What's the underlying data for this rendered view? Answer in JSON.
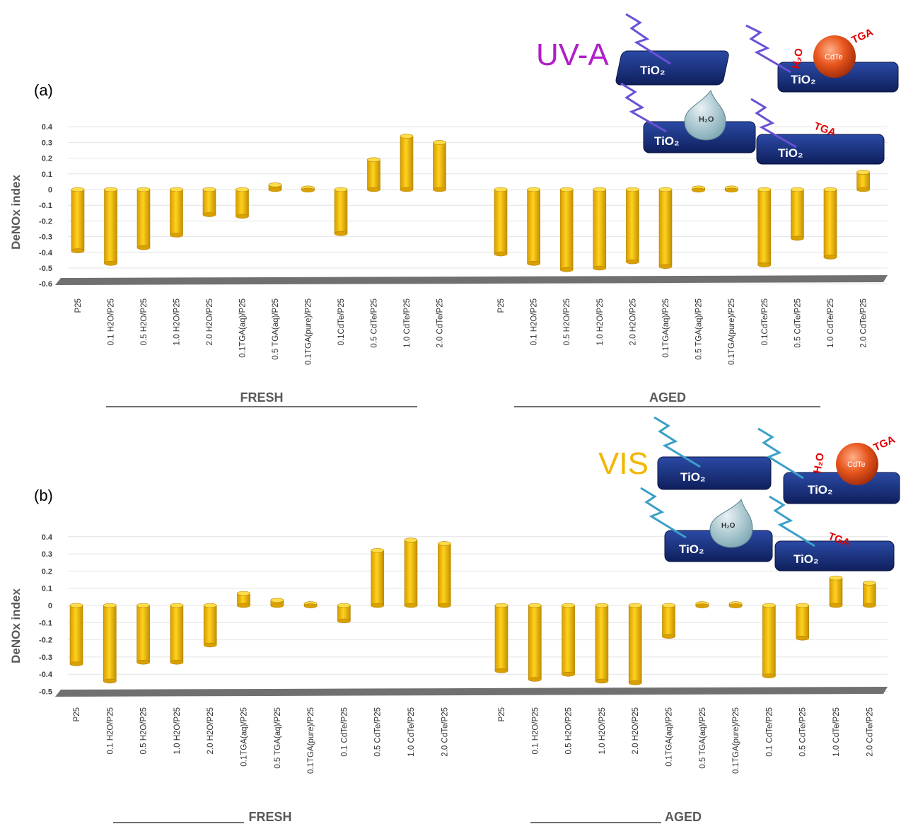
{
  "chart_data": [
    {
      "type": "bar",
      "panel_label": "(a)",
      "illumination_label": "UV-A",
      "ylabel": "DeNOx index",
      "ylim": [
        -0.6,
        0.4
      ],
      "yticks": [
        "0.4",
        "0.3",
        "0.2",
        "0.1",
        "0",
        "-0.1",
        "-0.2",
        "-0.3",
        "-0.4",
        "-0.5",
        "-0.6"
      ],
      "groups": [
        {
          "label": "FRESH",
          "categories": [
            "P25",
            "0.1 H2O/P25",
            "0.5 H2O/P25",
            "1.0 H2O/P25",
            "2.0 H2O/P25",
            "0.1TGA(aq)/P25",
            "0.5 TGA(aq)/P25",
            "0.1TGA(pure)/P25",
            "0.1CdTe/P25",
            "0.5 CdTe/P25",
            "1.0 CdTe/P25",
            "2.0 CdTe/P25"
          ],
          "values": [
            -0.39,
            -0.47,
            -0.37,
            -0.29,
            -0.16,
            -0.17,
            0.03,
            0.01,
            -0.28,
            0.19,
            0.34,
            0.3
          ]
        },
        {
          "label": "AGED",
          "categories": [
            "P25",
            "0.1 H2O/P25",
            "0.5 H2O/P25",
            "1.0 H2O/P25",
            "2.0 H2O/P25",
            "0.1TGA(aq)/P25",
            "0.5 TGA(aq)/P25",
            "0.1TGA(pure)/P25",
            "0.1CdTe/P25",
            "0.5 CdTe/P25",
            "1.0 CdTe/P25",
            "2.0 CdTe/P25"
          ],
          "values": [
            -0.41,
            -0.47,
            -0.51,
            -0.5,
            -0.46,
            -0.49,
            0.01,
            0.01,
            -0.48,
            -0.31,
            -0.43,
            0.11
          ]
        }
      ]
    },
    {
      "type": "bar",
      "panel_label": "(b)",
      "illumination_label": "VIS",
      "ylabel": "DeNOx index",
      "ylim": [
        -0.5,
        0.4
      ],
      "yticks": [
        "0.4",
        "0.3",
        "0.2",
        "0.1",
        "0",
        "-0.1",
        "-0.2",
        "-0.3",
        "-0.4",
        "-0.5"
      ],
      "groups": [
        {
          "label": "FRESH",
          "categories": [
            "P25",
            "0.1 H2O/P25",
            "0.5 H2O/P25",
            "1.0 H2O/P25",
            "2.0 H2O/P25",
            "0.1TGA(aq)/P25",
            "0.5 TGA(aq)/P25",
            "0.1TGA(pure)/P25",
            "0.1 CdTe/P25",
            "0.5 CdTe/P25",
            "1.0 CdTe/P25",
            "2.0 CdTe/P25"
          ],
          "values": [
            -0.34,
            -0.44,
            -0.33,
            -0.33,
            -0.23,
            0.07,
            0.03,
            0.01,
            -0.09,
            0.32,
            0.38,
            0.36
          ]
        },
        {
          "label": "AGED",
          "categories": [
            "P25",
            "0.1 H2O/P25",
            "0.5 H2O/P25",
            "1.0 H2O/P25",
            "2.0 H2O/P25",
            "0.1TGA(aq)/P25",
            "0.5 TGA(aq)/P25",
            "0.1TGA(pure)/P25",
            "0.1 CdTe/P25",
            "0.5 CdTe/P25",
            "1.0 CdTe/P25",
            "2.0 CdTe/P25"
          ],
          "values": [
            -0.38,
            -0.43,
            -0.4,
            -0.44,
            -0.45,
            -0.18,
            0.01,
            0.01,
            -0.41,
            -0.19,
            0.16,
            0.13
          ]
        }
      ]
    }
  ],
  "colors": {
    "bar": "#f5b800",
    "bar_dark": "#c48f00",
    "floor": "#6f6f6f",
    "uva": "#b01ec8",
    "vis": "#f2b600",
    "tio2": "#1e3a8c",
    "label_red": "#e00000"
  },
  "schematic": {
    "substrate": "TiO₂",
    "water": "H₂O",
    "quantum_dot": "CdTe",
    "ligand": "TGA",
    "water_ligand": "H₂O"
  }
}
